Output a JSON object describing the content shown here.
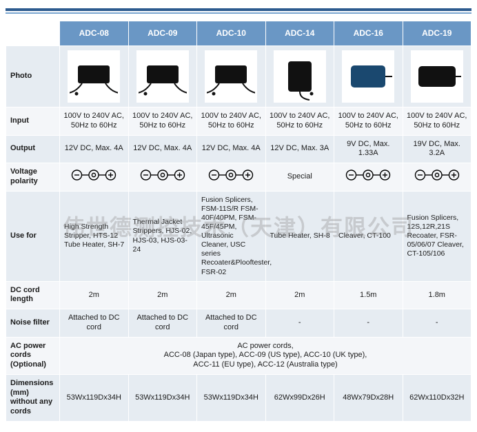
{
  "watermark": "伟世德测控技术（天津）有限公司",
  "columns": [
    "ADC-08",
    "ADC-09",
    "ADC-10",
    "ADC-14",
    "ADC-16",
    "ADC-19"
  ],
  "rows": {
    "photo": {
      "label": "Photo"
    },
    "input": {
      "label": "Input",
      "cells": [
        "100V to 240V AC, 50Hz to 60Hz",
        "100V to 240V AC, 50Hz to 60Hz",
        "100V to 240V AC, 50Hz to 60Hz",
        "100V to 240V AC, 50Hz to 60Hz",
        "100V to 240V AC, 50Hz to 60Hz",
        "100V to 240V AC, 50Hz to 60Hz"
      ]
    },
    "output": {
      "label": "Output",
      "cells": [
        "12V DC, Max. 4A",
        "12V DC, Max. 4A",
        "12V DC, Max. 4A",
        "12V DC, Max. 3A",
        "9V DC, Max. 1.33A",
        "19V DC, Max. 3.2A"
      ]
    },
    "polarity": {
      "label": "Voltage polarity",
      "special_index": 3,
      "special_text": "Special"
    },
    "use": {
      "label": "Use for",
      "cells": [
        "High Strength Stripper, HTS-12 Tube Heater, SH-7",
        "Thermal Jacket Strippers, HJS-02, HJS-03, HJS-03-24",
        "Fusion Splicers, FSM-11S/R FSM-40F/40PM, FSM-45F/45PM, Ultrasonic Cleaner, USC series Recoater&Plooftester, FSR-02",
        "Tube Heater, SH-8",
        "Cleaver, CT-100",
        "Fusion Splicers, 12S,12R,21S Recoater, FSR-05/06/07 Cleaver, CT-105/106"
      ]
    },
    "dccord": {
      "label": "DC cord length",
      "cells": [
        "2m",
        "2m",
        "2m",
        "2m",
        "1.5m",
        "1.8m"
      ]
    },
    "noise": {
      "label": "Noise filter",
      "cells": [
        "Attached to DC cord",
        "Attached to DC cord",
        "Attached to DC cord",
        "-",
        "-",
        "-"
      ]
    },
    "acpower": {
      "label": "AC power cords (Optional)",
      "merged": "AC power cords,\nACC-08 (Japan type), ACC-09 (US type), ACC-10 (UK type),\nACC-11 (EU type), ACC-12 (Australia type)"
    },
    "dims": {
      "label": "Dimensions (mm) without any cords",
      "cells": [
        "53Wx119Dx34H",
        "53Wx119Dx34H",
        "53Wx119Dx34H",
        "62Wx99Dx26H",
        "48Wx79Dx28H",
        "62Wx110Dx32H"
      ]
    }
  },
  "colors": {
    "header_bg": "#6a97c5",
    "band_a": "#e6ecf2",
    "band_b": "#f4f6f9",
    "bar_dark": "#2d5b8f",
    "bar_light": "#7aa6d0"
  },
  "adapter_shapes": [
    {
      "type": "brick",
      "w": 46,
      "h": 26,
      "cable": true
    },
    {
      "type": "brick",
      "w": 46,
      "h": 26,
      "cable": true
    },
    {
      "type": "brick",
      "w": 46,
      "h": 26,
      "cable": true
    },
    {
      "type": "upright",
      "w": 34,
      "h": 44,
      "cable": true
    },
    {
      "type": "flat",
      "w": 50,
      "h": 32,
      "color": "#1a486f"
    },
    {
      "type": "flat",
      "w": 54,
      "h": 30,
      "color": "#111"
    }
  ]
}
